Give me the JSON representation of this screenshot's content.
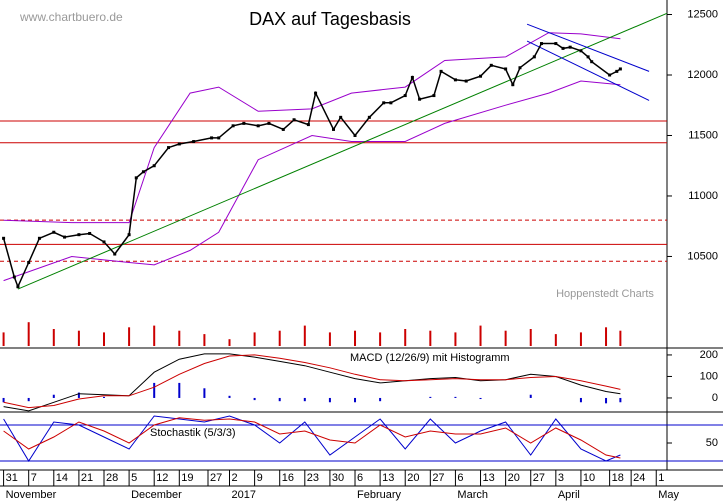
{
  "chart_data": [
    {
      "type": "line",
      "title": "DAX auf Tagesbasis",
      "watermark": "www.chartbuero.de",
      "source": "Hoppenstedt Charts",
      "x": [
        0,
        3,
        4,
        7,
        10,
        14,
        17,
        21,
        24,
        28,
        31,
        35,
        37,
        39,
        42,
        46,
        49,
        53,
        58,
        60,
        64,
        67,
        71,
        74,
        78,
        81,
        85,
        87,
        92,
        94,
        98,
        102,
        106,
        108,
        112,
        114,
        116,
        120,
        122,
        126,
        129,
        133,
        136,
        140,
        142,
        144,
        148,
        150,
        154,
        156,
        158,
        161,
        163,
        164,
        169,
        171,
        172
      ],
      "values": [
        10650,
        10330,
        10250,
        10450,
        10650,
        10700,
        10660,
        10680,
        10690,
        10620,
        10520,
        10680,
        11150,
        11200,
        11250,
        11400,
        11430,
        11450,
        11480,
        11480,
        11580,
        11600,
        11580,
        11600,
        11550,
        11630,
        11590,
        11850,
        11550,
        11650,
        11500,
        11650,
        11770,
        11770,
        11830,
        11980,
        11800,
        11830,
        12030,
        11960,
        11950,
        11990,
        12080,
        12050,
        11920,
        12060,
        12150,
        12260,
        12260,
        12220,
        12230,
        12200,
        12150,
        12110,
        12000,
        12030,
        12050
      ],
      "color": "#000000",
      "bands": {
        "x": [
          0,
          19,
          35,
          42,
          52,
          60,
          71,
          86,
          97,
          112,
          123,
          140,
          152,
          161,
          172
        ],
        "upper": [
          10800,
          10780,
          10780,
          11400,
          11850,
          11900,
          11700,
          11720,
          11850,
          11900,
          12120,
          12150,
          12350,
          12340,
          12300
        ],
        "lower": [
          10300,
          10500,
          10450,
          10430,
          10550,
          10700,
          11300,
          11500,
          11450,
          11450,
          11600,
          11750,
          11850,
          11950,
          11920
        ],
        "color": "#9900cc"
      },
      "hlines": [
        {
          "value": 11620,
          "style": "solid"
        },
        {
          "value": 11440,
          "style": "solid"
        },
        {
          "value": 10800,
          "style": "dashed"
        },
        {
          "value": 10600,
          "style": "solid"
        },
        {
          "value": 10460,
          "style": "dashed"
        }
      ],
      "hline_color": "#cc0000",
      "trendlines": [
        {
          "x": [
            4,
            185
          ],
          "y": [
            10230,
            12510
          ],
          "color": "#008000"
        },
        {
          "x": [
            146,
            180
          ],
          "y": [
            12420,
            12030
          ],
          "color": "#0000cc"
        },
        {
          "x": [
            146,
            180
          ],
          "y": [
            12280,
            11790
          ],
          "color": "#0000cc"
        }
      ],
      "xlim": [
        -1,
        185
      ],
      "ylim": [
        10140,
        12620
      ],
      "yticks": [
        10500,
        11000,
        11500,
        12000,
        12500
      ],
      "xticks": [
        {
          "value": 0,
          "label": "31"
        },
        7,
        14,
        21,
        28,
        {
          "value": 35,
          "label": "5"
        },
        {
          "value": 42,
          "label": "12"
        },
        {
          "value": 49,
          "label": "19"
        },
        {
          "value": 57,
          "label": "27"
        },
        {
          "value": 63,
          "label": "2"
        },
        {
          "value": 70,
          "label": "9"
        },
        {
          "value": 77,
          "label": "16"
        },
        {
          "value": 84,
          "label": "23"
        },
        {
          "value": 91,
          "label": "30"
        },
        {
          "value": 98,
          "label": "6"
        },
        {
          "value": 105,
          "label": "13"
        },
        {
          "value": 112,
          "label": "20"
        },
        {
          "value": 119,
          "label": "27"
        },
        {
          "value": 126,
          "label": "6"
        },
        {
          "value": 133,
          "label": "13"
        },
        {
          "value": 140,
          "label": "20"
        },
        {
          "value": 147,
          "label": "27"
        },
        {
          "value": 154,
          "label": "3"
        },
        {
          "value": 161,
          "label": "10"
        },
        {
          "value": 169,
          "label": "18"
        },
        {
          "value": 175,
          "label": "24"
        },
        {
          "value": 182,
          "label": "1"
        }
      ],
      "month_labels": {
        "x": [
          0,
          35,
          63,
          98,
          126,
          154,
          182
        ],
        "labels": [
          "November",
          "December",
          "2017",
          "February",
          "March",
          "April",
          "May"
        ]
      }
    },
    {
      "type": "bar",
      "x": [
        0,
        7,
        14,
        21,
        28,
        35,
        42,
        49,
        56,
        63,
        70,
        77,
        84,
        91,
        98,
        105,
        112,
        119,
        126,
        133,
        140,
        147,
        154,
        161,
        168,
        172
      ],
      "values": [
        40,
        70,
        50,
        45,
        40,
        55,
        60,
        45,
        35,
        20,
        40,
        45,
        60,
        40,
        45,
        40,
        50,
        45,
        40,
        60,
        45,
        50,
        35,
        40,
        55,
        45
      ],
      "color": "#cc0000",
      "ylim": [
        0,
        100
      ]
    },
    {
      "type": "macd",
      "title": "MACD (12/26/9) mit Histogramm",
      "x": [
        0,
        7,
        14,
        21,
        28,
        35,
        42,
        49,
        56,
        63,
        70,
        77,
        84,
        91,
        98,
        105,
        112,
        119,
        126,
        133,
        140,
        147,
        154,
        161,
        168,
        172
      ],
      "series": [
        {
          "color": "#000000",
          "values": [
            -40,
            -60,
            -20,
            20,
            15,
            10,
            120,
            180,
            205,
            205,
            190,
            170,
            150,
            120,
            90,
            70,
            80,
            90,
            95,
            80,
            85,
            110,
            100,
            60,
            30,
            20
          ]
        },
        {
          "color": "#cc0000",
          "values": [
            -20,
            -45,
            -35,
            -5,
            10,
            10,
            50,
            110,
            160,
            195,
            200,
            185,
            165,
            140,
            110,
            85,
            80,
            85,
            90,
            85,
            85,
            95,
            100,
            80,
            55,
            40
          ]
        }
      ],
      "histogram": {
        "color": "#0000cc",
        "values": [
          -20,
          -15,
          15,
          25,
          5,
          0,
          70,
          70,
          45,
          10,
          -10,
          -15,
          -15,
          -20,
          -20,
          -15,
          0,
          5,
          5,
          -5,
          0,
          15,
          0,
          -20,
          -25,
          -20
        ]
      },
      "ylim": [
        -56,
        223
      ],
      "yticks": [
        0,
        100,
        200
      ]
    },
    {
      "type": "stochastic",
      "title": "Stochastik (5/3/3)",
      "x": [
        0,
        7,
        14,
        21,
        28,
        35,
        42,
        49,
        56,
        63,
        70,
        77,
        84,
        91,
        98,
        105,
        112,
        119,
        126,
        133,
        140,
        147,
        154,
        161,
        168,
        172
      ],
      "series": [
        {
          "color": "#0000cc",
          "values": [
            90,
            20,
            85,
            80,
            60,
            40,
            95,
            90,
            85,
            95,
            80,
            50,
            85,
            30,
            60,
            90,
            40,
            90,
            50,
            70,
            85,
            30,
            90,
            40,
            20,
            30
          ]
        },
        {
          "color": "#cc0000",
          "values": [
            70,
            40,
            60,
            85,
            70,
            50,
            80,
            92,
            88,
            90,
            85,
            65,
            70,
            55,
            50,
            80,
            60,
            70,
            65,
            65,
            75,
            50,
            75,
            55,
            30,
            25
          ]
        }
      ],
      "hlines": [
        80,
        20
      ],
      "hline_color": "#0000cc",
      "ylim": [
        5,
        100
      ],
      "yticks": [
        50
      ]
    }
  ]
}
